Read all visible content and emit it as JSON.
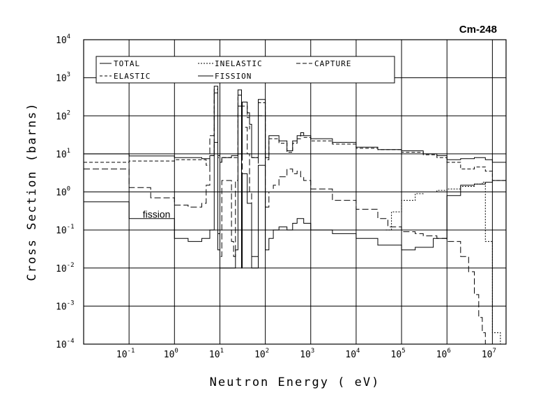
{
  "chart_data": {
    "type": "line",
    "title": "Cm-248",
    "xlabel": "Neutron Energy ( eV)",
    "ylabel": "Cross Section (barns)",
    "x_scale": "log",
    "y_scale": "log",
    "xlim": [
      0.01,
      20000000
    ],
    "ylim": [
      0.0001,
      10000
    ],
    "grid": true,
    "legend_position": "top-left",
    "x_ticks": [
      {
        "base": "10",
        "exp": "-1",
        "value": 0.1
      },
      {
        "base": "10",
        "exp": "0",
        "value": 1
      },
      {
        "base": "10",
        "exp": "1",
        "value": 10
      },
      {
        "base": "10",
        "exp": "2",
        "value": 100
      },
      {
        "base": "10",
        "exp": "3",
        "value": 1000
      },
      {
        "base": "10",
        "exp": "4",
        "value": 10000
      },
      {
        "base": "10",
        "exp": "5",
        "value": 100000
      },
      {
        "base": "10",
        "exp": "6",
        "value": 1000000
      },
      {
        "base": "10",
        "exp": "7",
        "value": 10000000
      }
    ],
    "y_ticks": [
      {
        "base": "10",
        "exp": "-4",
        "value": 0.0001
      },
      {
        "base": "10",
        "exp": "-3",
        "value": 0.001
      },
      {
        "base": "10",
        "exp": "-2",
        "value": 0.01
      },
      {
        "base": "10",
        "exp": "-1",
        "value": 0.1
      },
      {
        "base": "10",
        "exp": "0",
        "value": 1
      },
      {
        "base": "10",
        "exp": "1",
        "value": 10
      },
      {
        "base": "10",
        "exp": "2",
        "value": 100
      },
      {
        "base": "10",
        "exp": "3",
        "value": 1000
      },
      {
        "base": "10",
        "exp": "4",
        "value": 10000
      }
    ],
    "legend": [
      {
        "key": "total",
        "label": "TOTAL"
      },
      {
        "key": "inelastic",
        "label": "INELASTIC"
      },
      {
        "key": "capture",
        "label": "CAPTURE"
      },
      {
        "key": "elastic",
        "label": "ELASTIC"
      },
      {
        "key": "fission",
        "label": "FISSION"
      }
    ],
    "annotations": [
      {
        "text": "fission",
        "x": 0.2,
        "y": 0.21
      }
    ],
    "series": [
      {
        "name": "TOTAL",
        "style": "solid",
        "points": [
          [
            0.01,
            10
          ],
          [
            0.1,
            8.8
          ],
          [
            1,
            8
          ],
          [
            4,
            7.5
          ],
          [
            6,
            9
          ],
          [
            7.5,
            600
          ],
          [
            8.5,
            600
          ],
          [
            9,
            9
          ],
          [
            10,
            6
          ],
          [
            11,
            8
          ],
          [
            14,
            8
          ],
          [
            18,
            9
          ],
          [
            20,
            9
          ],
          [
            22,
            9
          ],
          [
            25,
            480
          ],
          [
            28,
            480
          ],
          [
            30,
            8
          ],
          [
            31,
            230
          ],
          [
            38,
            230
          ],
          [
            40,
            120
          ],
          [
            45,
            60
          ],
          [
            50,
            8
          ],
          [
            60,
            8
          ],
          [
            70,
            270
          ],
          [
            90,
            270
          ],
          [
            100,
            8
          ],
          [
            120,
            30
          ],
          [
            150,
            30
          ],
          [
            200,
            22
          ],
          [
            300,
            12
          ],
          [
            400,
            22
          ],
          [
            500,
            30
          ],
          [
            600,
            36
          ],
          [
            700,
            30
          ],
          [
            1000,
            25
          ],
          [
            3000,
            20
          ],
          [
            10000,
            15
          ],
          [
            30000,
            13
          ],
          [
            100000,
            12
          ],
          [
            300000,
            10
          ],
          [
            600000,
            9
          ],
          [
            1000000,
            7
          ],
          [
            2000000,
            7.5
          ],
          [
            4000000,
            8
          ],
          [
            7000000,
            7
          ],
          [
            10000000,
            6
          ],
          [
            20000000,
            5.5
          ]
        ]
      },
      {
        "name": "ELASTIC",
        "style": "dashed",
        "points": [
          [
            0.01,
            6
          ],
          [
            0.1,
            6.5
          ],
          [
            1,
            7
          ],
          [
            4,
            7
          ],
          [
            5,
            5
          ],
          [
            6,
            9
          ],
          [
            7.5,
            500
          ],
          [
            8.5,
            500
          ],
          [
            9,
            8
          ],
          [
            10,
            6
          ],
          [
            11,
            8
          ],
          [
            14,
            8
          ],
          [
            20,
            8
          ],
          [
            22,
            8
          ],
          [
            25,
            350
          ],
          [
            28,
            350
          ],
          [
            30,
            8
          ],
          [
            31,
            180
          ],
          [
            38,
            180
          ],
          [
            40,
            90
          ],
          [
            45,
            45
          ],
          [
            50,
            8
          ],
          [
            60,
            8
          ],
          [
            70,
            220
          ],
          [
            90,
            220
          ],
          [
            100,
            7
          ],
          [
            120,
            25
          ],
          [
            150,
            25
          ],
          [
            200,
            19
          ],
          [
            300,
            11
          ],
          [
            400,
            19
          ],
          [
            500,
            25
          ],
          [
            600,
            30
          ],
          [
            700,
            27
          ],
          [
            1000,
            22
          ],
          [
            3000,
            18
          ],
          [
            10000,
            14
          ],
          [
            30000,
            13
          ],
          [
            100000,
            11
          ],
          [
            300000,
            9.5
          ],
          [
            600000,
            8
          ],
          [
            1000000,
            6
          ],
          [
            2000000,
            4
          ],
          [
            4000000,
            4.5
          ],
          [
            7000000,
            3.5
          ],
          [
            10000000,
            2
          ],
          [
            20000000,
            2
          ]
        ]
      },
      {
        "name": "CAPTURE",
        "style": "long-dash",
        "points": [
          [
            0.01,
            4
          ],
          [
            0.1,
            1.3
          ],
          [
            0.3,
            0.7
          ],
          [
            1,
            0.45
          ],
          [
            2,
            0.4
          ],
          [
            4,
            0.5
          ],
          [
            5,
            1.5
          ],
          [
            6,
            30
          ],
          [
            7.5,
            400
          ],
          [
            8.5,
            400
          ],
          [
            9,
            0.08
          ],
          [
            10,
            0.02
          ],
          [
            11,
            2
          ],
          [
            14,
            2
          ],
          [
            18,
            0.05
          ],
          [
            20,
            0.02
          ],
          [
            22,
            2
          ],
          [
            25,
            180
          ],
          [
            28,
            180
          ],
          [
            30,
            0.02
          ],
          [
            31,
            50
          ],
          [
            38,
            50
          ],
          [
            40,
            10
          ],
          [
            45,
            1
          ],
          [
            50,
            0.02
          ],
          [
            60,
            0.02
          ],
          [
            70,
            100
          ],
          [
            90,
            100
          ],
          [
            100,
            0.4
          ],
          [
            120,
            1
          ],
          [
            150,
            1.5
          ],
          [
            200,
            2.5
          ],
          [
            300,
            4
          ],
          [
            400,
            3
          ],
          [
            500,
            3.5
          ],
          [
            600,
            2.5
          ],
          [
            700,
            2
          ],
          [
            1000,
            1.2
          ],
          [
            3000,
            0.6
          ],
          [
            10000,
            0.35
          ],
          [
            30000,
            0.2
          ],
          [
            50000,
            0.12
          ],
          [
            100000,
            0.09
          ],
          [
            200000,
            0.08
          ],
          [
            300000,
            0.07
          ],
          [
            600000,
            0.06
          ],
          [
            1000000,
            0.05
          ],
          [
            2000000,
            0.02
          ],
          [
            3000000,
            0.008
          ],
          [
            4000000,
            0.002
          ],
          [
            5000000,
            0.0005
          ],
          [
            6000000,
            0.0002
          ],
          [
            7000000,
            0.0001
          ]
        ]
      },
      {
        "name": "INELASTIC",
        "style": "dotted",
        "points": [
          [
            45000,
            0.1
          ],
          [
            60000,
            0.3
          ],
          [
            100000,
            0.6
          ],
          [
            200000,
            0.9
          ],
          [
            300000,
            1
          ],
          [
            600000,
            1.1
          ],
          [
            1000000,
            1.2
          ],
          [
            2000000,
            1.4
          ],
          [
            4000000,
            1.6
          ],
          [
            6000000,
            1.8
          ],
          [
            7000000,
            0.05
          ],
          [
            10000000,
            0.0002
          ],
          [
            15000000,
            0.0001
          ]
        ]
      },
      {
        "name": "FISSION",
        "style": "solid",
        "points": [
          [
            0.01,
            0.55
          ],
          [
            0.1,
            0.2
          ],
          [
            1,
            0.06
          ],
          [
            2,
            0.05
          ],
          [
            4,
            0.06
          ],
          [
            6,
            0.1
          ],
          [
            7.5,
            20
          ],
          [
            8.5,
            20
          ],
          [
            9,
            0.03
          ],
          [
            10,
            0.01
          ],
          [
            14,
            0.01
          ],
          [
            20,
            0.01
          ],
          [
            22,
            0.03
          ],
          [
            25,
            10
          ],
          [
            28,
            10
          ],
          [
            30,
            0.01
          ],
          [
            31,
            3
          ],
          [
            38,
            3
          ],
          [
            40,
            0.5
          ],
          [
            50,
            0.01
          ],
          [
            60,
            0.01
          ],
          [
            70,
            5
          ],
          [
            90,
            5
          ],
          [
            100,
            0.03
          ],
          [
            120,
            0.06
          ],
          [
            150,
            0.1
          ],
          [
            200,
            0.12
          ],
          [
            300,
            0.1
          ],
          [
            400,
            0.15
          ],
          [
            500,
            0.2
          ],
          [
            700,
            0.15
          ],
          [
            1000,
            0.1
          ],
          [
            3000,
            0.08
          ],
          [
            10000,
            0.06
          ],
          [
            30000,
            0.04
          ],
          [
            100000,
            0.03
          ],
          [
            200000,
            0.035
          ],
          [
            500000,
            0.06
          ],
          [
            1000000,
            0.8
          ],
          [
            2000000,
            1.5
          ],
          [
            4000000,
            1.6
          ],
          [
            7000000,
            1.8
          ],
          [
            10000000,
            2
          ],
          [
            20000000,
            2.5
          ]
        ]
      }
    ]
  }
}
